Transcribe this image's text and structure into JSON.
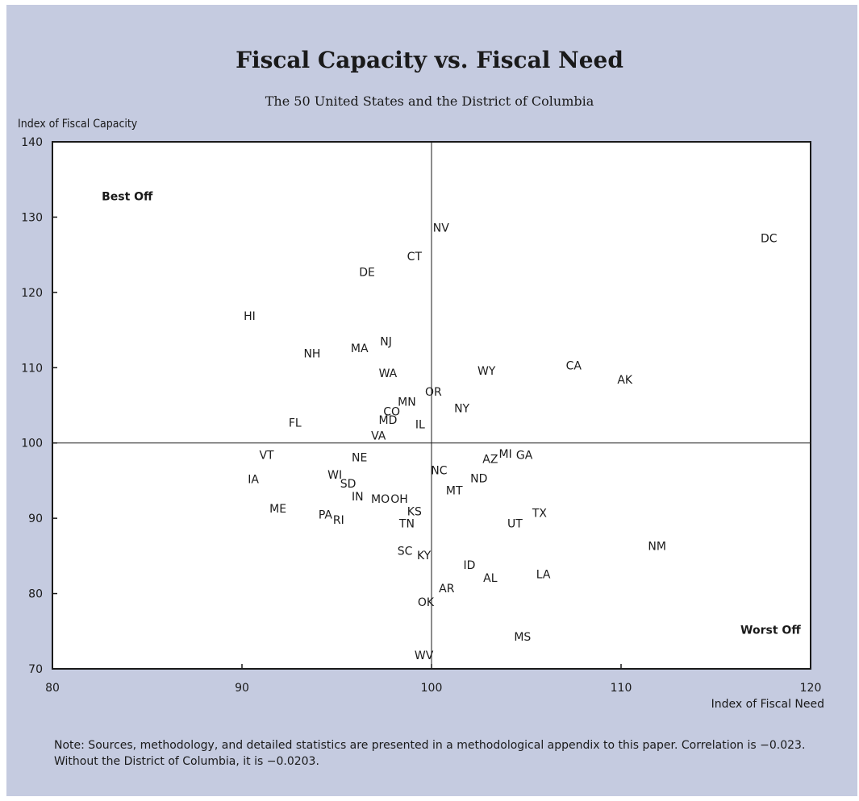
{
  "chart_data": {
    "type": "scatter",
    "title": "Fiscal Capacity vs. Fiscal Need",
    "subtitle": "The 50 United States and the District of Columbia",
    "xlabel": "Index of Fiscal Need",
    "ylabel": "Index of Fiscal Capacity",
    "xlim": [
      80,
      120
    ],
    "ylim": [
      70,
      140
    ],
    "xticks": [
      80,
      90,
      100,
      110,
      120
    ],
    "yticks": [
      70,
      80,
      90,
      100,
      110,
      120,
      130,
      140
    ],
    "reference_lines": {
      "x": 100,
      "y": 100
    },
    "grid": false,
    "annotations": [
      {
        "text": "Best Off",
        "x": 82.6,
        "y": 132.8
      },
      {
        "text": "Worst Off",
        "x": 116.3,
        "y": 75.2
      }
    ],
    "points": [
      {
        "label": "DC",
        "x": 117.8,
        "y": 127.2
      },
      {
        "label": "NV",
        "x": 100.5,
        "y": 128.6
      },
      {
        "label": "CT",
        "x": 99.1,
        "y": 124.8
      },
      {
        "label": "DE",
        "x": 96.6,
        "y": 122.7
      },
      {
        "label": "HI",
        "x": 90.4,
        "y": 116.9
      },
      {
        "label": "NJ",
        "x": 97.6,
        "y": 113.5
      },
      {
        "label": "MA",
        "x": 96.2,
        "y": 112.6
      },
      {
        "label": "NH",
        "x": 93.7,
        "y": 111.9
      },
      {
        "label": "CA",
        "x": 107.5,
        "y": 110.3
      },
      {
        "label": "WY",
        "x": 102.9,
        "y": 109.6
      },
      {
        "label": "WA",
        "x": 97.7,
        "y": 109.3
      },
      {
        "label": "AK",
        "x": 110.2,
        "y": 108.4
      },
      {
        "label": "OR",
        "x": 100.1,
        "y": 106.8
      },
      {
        "label": "MN",
        "x": 98.7,
        "y": 105.5
      },
      {
        "label": "NY",
        "x": 101.6,
        "y": 104.6
      },
      {
        "label": "CO",
        "x": 97.9,
        "y": 104.2
      },
      {
        "label": "MD",
        "x": 97.7,
        "y": 103.1
      },
      {
        "label": "FL",
        "x": 92.8,
        "y": 102.7
      },
      {
        "label": "IL",
        "x": 99.4,
        "y": 102.5
      },
      {
        "label": "VA",
        "x": 97.2,
        "y": 101.0
      },
      {
        "label": "VT",
        "x": 91.3,
        "y": 98.4
      },
      {
        "label": "NE",
        "x": 96.2,
        "y": 98.1
      },
      {
        "label": "MI",
        "x": 103.9,
        "y": 98.6
      },
      {
        "label": "GA",
        "x": 104.9,
        "y": 98.4
      },
      {
        "label": "AZ",
        "x": 103.1,
        "y": 97.9
      },
      {
        "label": "NC",
        "x": 100.4,
        "y": 96.4
      },
      {
        "label": "WI",
        "x": 94.9,
        "y": 95.8
      },
      {
        "label": "ND",
        "x": 102.5,
        "y": 95.3
      },
      {
        "label": "IA",
        "x": 90.6,
        "y": 95.2
      },
      {
        "label": "SD",
        "x": 95.6,
        "y": 94.6
      },
      {
        "label": "MT",
        "x": 101.2,
        "y": 93.7
      },
      {
        "label": "IN",
        "x": 96.1,
        "y": 92.9
      },
      {
        "label": "MO",
        "x": 97.3,
        "y": 92.6
      },
      {
        "label": "OH",
        "x": 98.3,
        "y": 92.6
      },
      {
        "label": "ME",
        "x": 91.9,
        "y": 91.3
      },
      {
        "label": "KS",
        "x": 99.1,
        "y": 90.9
      },
      {
        "label": "TX",
        "x": 105.7,
        "y": 90.7
      },
      {
        "label": "PA",
        "x": 94.4,
        "y": 90.5
      },
      {
        "label": "RI",
        "x": 95.1,
        "y": 89.8
      },
      {
        "label": "TN",
        "x": 98.7,
        "y": 89.3
      },
      {
        "label": "UT",
        "x": 104.4,
        "y": 89.3
      },
      {
        "label": "NM",
        "x": 111.9,
        "y": 86.3
      },
      {
        "label": "SC",
        "x": 98.6,
        "y": 85.7
      },
      {
        "label": "KY",
        "x": 99.6,
        "y": 85.1
      },
      {
        "label": "ID",
        "x": 102.0,
        "y": 83.8
      },
      {
        "label": "LA",
        "x": 105.9,
        "y": 82.6
      },
      {
        "label": "AL",
        "x": 103.1,
        "y": 82.1
      },
      {
        "label": "AR",
        "x": 100.8,
        "y": 80.7
      },
      {
        "label": "OK",
        "x": 99.7,
        "y": 78.9
      },
      {
        "label": "MS",
        "x": 104.8,
        "y": 74.3
      },
      {
        "label": "WV",
        "x": 99.6,
        "y": 71.8
      }
    ]
  },
  "note": "Note: Sources, methodology, and detailed statistics are presented in a methodological appendix to this paper. Correlation is −0.023. Without the District of Columbia, it is −0.0203."
}
